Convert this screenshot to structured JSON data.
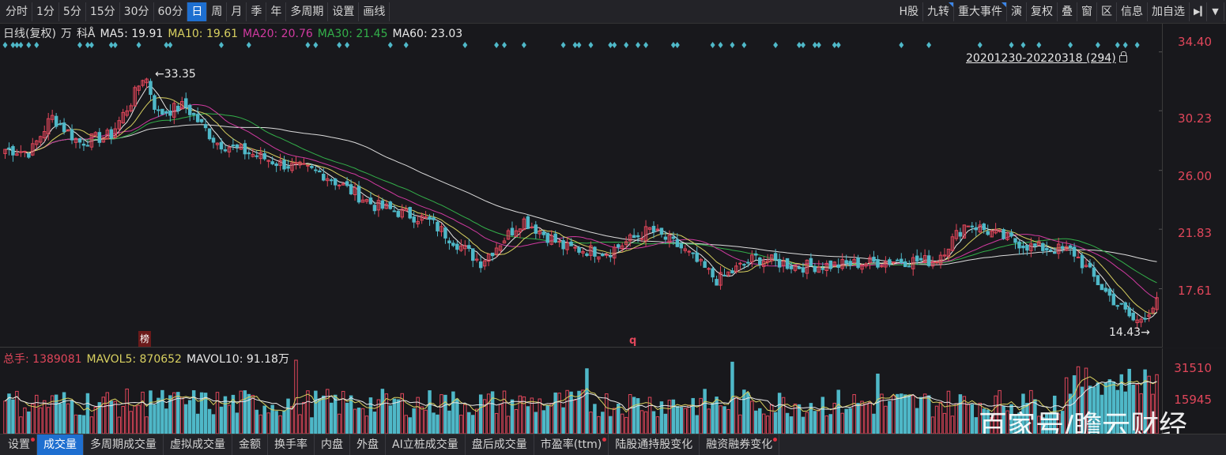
{
  "toolbar": {
    "left_items": [
      "分时",
      "1分",
      "5分",
      "15分",
      "30分",
      "60分",
      "日",
      "周",
      "月",
      "季",
      "年",
      "多周期",
      "设置",
      "画线"
    ],
    "active": "日",
    "right_items": [
      "H股",
      "九转",
      "重大事件",
      "演",
      "复权",
      "叠",
      "窗",
      "区",
      "信息",
      "加自选"
    ]
  },
  "ma_legend": {
    "title": "日线(复权)",
    "unit": "万",
    "tag": "科Å",
    "ma5": "MA5: 19.91",
    "ma10": "MA10: 19.61",
    "ma20": "MA20: 20.76",
    "ma30": "MA30: 21.45",
    "ma60": "MA60: 23.03"
  },
  "colors": {
    "up": "#e0465a",
    "down": "#4fb8c8",
    "ma5": "#e8e8e8",
    "ma10": "#d8d060",
    "ma20": "#d03aa0",
    "ma30": "#33b04a",
    "ma60": "#e8e8e8",
    "axis": "#e0465a"
  },
  "price_axis": [
    "34.40",
    "30.23",
    "26.00",
    "21.83",
    "17.61"
  ],
  "range_label": "20201230-20220318 (294)",
  "high_label": "33.35",
  "low_label": "14.43",
  "markers": {
    "bang": "榜",
    "q": "q"
  },
  "volume_legend": {
    "total": "总手: 1389081",
    "mavol5": "MAVOL5: 870652",
    "mavol10": "MAVOL10: 91.18万"
  },
  "volume_axis": [
    "31510",
    "15945"
  ],
  "watermark": "百家号/瞻云财经",
  "bottom_tabs": [
    {
      "label": "设置",
      "dot": true
    },
    {
      "label": "成交量",
      "dot": false,
      "active": true
    },
    {
      "label": "多周期成交量",
      "dot": false
    },
    {
      "label": "虚拟成交量",
      "dot": false
    },
    {
      "label": "金额",
      "dot": false
    },
    {
      "label": "换手率",
      "dot": false
    },
    {
      "label": "内盘",
      "dot": false
    },
    {
      "label": "外盘",
      "dot": false
    },
    {
      "label": "AI立桩成交量",
      "dot": false
    },
    {
      "label": "盘后成交量",
      "dot": false
    },
    {
      "label": "市盈率(ttm)",
      "dot": true
    },
    {
      "label": "陆股通持股变化",
      "dot": false
    },
    {
      "label": "融资融券变化",
      "dot": true
    }
  ],
  "chart_data": {
    "type": "candlestick",
    "title": "日线(复权)",
    "period": "20201230-20220318",
    "bars": 294,
    "ylim": [
      14.0,
      35.0
    ],
    "key_points": [
      {
        "label": "start",
        "value": 27.5
      },
      {
        "label": "high",
        "value": 33.35
      },
      {
        "label": "mid",
        "value": 21.83
      },
      {
        "label": "low",
        "value": 14.43
      },
      {
        "label": "end",
        "value": 16.8
      }
    ],
    "moving_averages": {
      "MA5": 19.91,
      "MA10": 19.61,
      "MA20": 20.76,
      "MA30": 21.45,
      "MA60": 23.03
    },
    "volume": {
      "total": 1389081,
      "mavol5": 870652,
      "mavol10": "91.18万",
      "ylim": [
        0,
        31510
      ]
    }
  }
}
